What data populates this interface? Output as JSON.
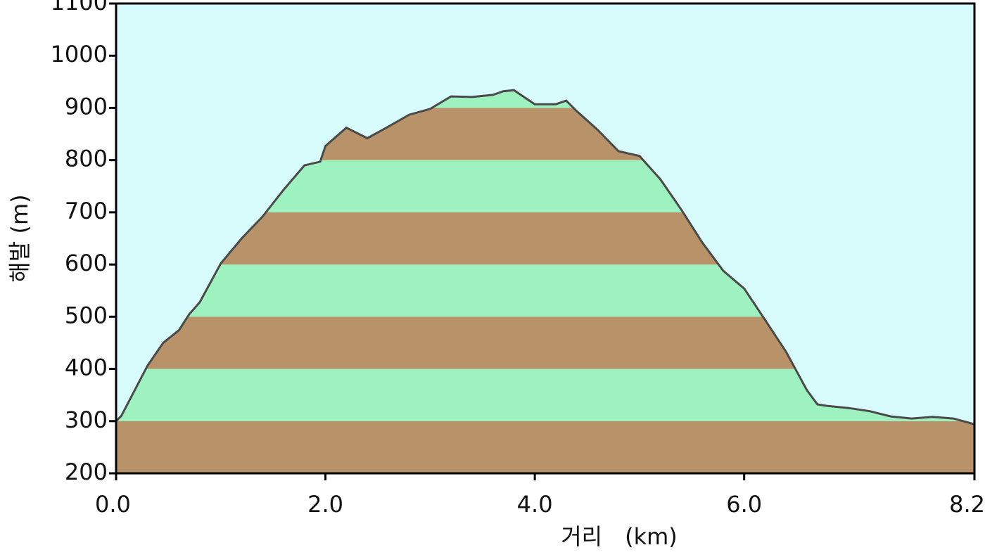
{
  "chart_data": {
    "type": "area",
    "x_label": "거리　(km)",
    "y_label": "해발 (m)",
    "x": [
      0,
      0.05,
      0.3,
      0.45,
      0.6,
      0.7,
      0.8,
      1.0,
      1.2,
      1.4,
      1.6,
      1.8,
      1.95,
      2.0,
      2.2,
      2.4,
      2.6,
      2.8,
      3.0,
      3.2,
      3.4,
      3.6,
      3.7,
      3.8,
      4.0,
      4.2,
      4.3,
      4.4,
      4.6,
      4.8,
      5.0,
      5.2,
      5.4,
      5.6,
      5.8,
      6.0,
      6.2,
      6.4,
      6.6,
      6.7,
      6.8,
      7.0,
      7.2,
      7.4,
      7.6,
      7.8,
      8.0,
      8.2
    ],
    "values": [
      300,
      310,
      406,
      450,
      474,
      505,
      528,
      602,
      650,
      692,
      743,
      790,
      797,
      827,
      862,
      842,
      864,
      887,
      898,
      922,
      921,
      925,
      932,
      934,
      907,
      907,
      914,
      894,
      858,
      817,
      808,
      763,
      705,
      642,
      588,
      554,
      494,
      433,
      359,
      332,
      329,
      325,
      319,
      309,
      305,
      308,
      305,
      294
    ],
    "xlim": [
      0,
      8.2
    ],
    "xticks": [
      {
        "value": 0,
        "label": "0.0"
      },
      {
        "value": 2,
        "label": "2.0"
      },
      {
        "value": 4,
        "label": "4.0"
      },
      {
        "value": 6,
        "label": "6.0"
      },
      {
        "value": 8.2,
        "label": "8.2"
      }
    ],
    "ylim": [
      200,
      1100
    ],
    "yticks": [
      200,
      300,
      400,
      500,
      600,
      700,
      800,
      900,
      1000,
      1100
    ],
    "color": "#4a4a4a",
    "background": "#d8fcfc",
    "band_colors": [
      "#b8936a",
      "#9ef2bf"
    ]
  }
}
